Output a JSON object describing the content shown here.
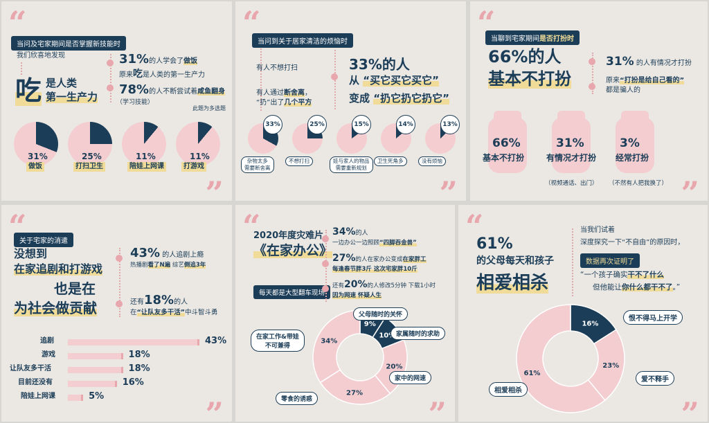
{
  "p1": {
    "pill": "当问及宅家期间是否掌握新技能时",
    "found": "我们欣喜地发现",
    "big": "吃",
    "big2": "是人类",
    "big3": "第一生产力",
    "s1pct": "31%",
    "s1a": "的人学会了",
    "s1b": "做饭",
    "s2a": "原来",
    "s2b": "吃",
    "s2c": "是人类的第一生产力",
    "s3pct": "78%",
    "s3a": "的人不断尝试着",
    "s3b": "咸鱼翻身",
    "s4": "（学习技能）",
    "note": "此题为多选题",
    "pies": [
      {
        "v": 31,
        "pct": "31%",
        "label": "做饭"
      },
      {
        "v": 25,
        "pct": "25%",
        "label": "打扫卫生"
      },
      {
        "v": 11,
        "pct": "11%",
        "label": "陪娃上网课"
      },
      {
        "v": 11,
        "pct": "11%",
        "label": "打游戏"
      }
    ]
  },
  "p2": {
    "pill": "当问到关于居家清洁的烦恼时",
    "l1": "有人不想打扫",
    "l2a": "有人通过",
    "l2b": "断舍离",
    "l2c": "，",
    "l3a": "“扔”出了",
    "l3b": "几个平方",
    "big1": "33%的人",
    "big2": "从",
    "big3": "“买它买它买它”",
    "big4": "变成",
    "big5": "“扔它扔它扔它”",
    "pies": [
      {
        "v": 33,
        "pct": "33%",
        "label": "杂物太多\n需要断舍离"
      },
      {
        "v": 25,
        "pct": "25%",
        "label": "不想打扫"
      },
      {
        "v": 15,
        "pct": "15%",
        "label": "娃与家人的物品\n需要重新规划"
      },
      {
        "v": 14,
        "pct": "14%",
        "label": "卫生死角多"
      },
      {
        "v": 13,
        "pct": "13%",
        "label": "没有烦恼"
      }
    ]
  },
  "p3": {
    "pill_a": "当聊到宅家期间",
    "pill_b": "是否打扮时",
    "big1": "66%的人",
    "big2": "基本不打扮",
    "s1pct": "31%",
    "s1": "的人有情况才打扮",
    "s2a": "原来",
    "s2b": "“打扮是给自己看的”",
    "s2c": "都是骗人的",
    "jars": [
      {
        "pct": "66%",
        "label": "基本不打扮",
        "sub": ""
      },
      {
        "pct": "31%",
        "label": "有情况才打扮",
        "sub": "（视频通话、出门）"
      },
      {
        "pct": "3%",
        "label": "经常打扮",
        "sub": "（不然有人把我换了）"
      }
    ]
  },
  "p4": {
    "pill": "关于宅家的消遣",
    "h1": "没想到",
    "h2": "在家追剧和打游戏",
    "h3": "也是在",
    "h4": "为社会做贡献",
    "s1pct": "43%",
    "s1": "的人追剧上瘾",
    "s2a": "热播剧",
    "s2b": "看了N遍",
    "s2c": "综艺",
    "s2d": "倒追3年",
    "s3a": "还有",
    "s3pct": "18%",
    "s3b": "的人",
    "s4a": "在",
    "s4b": "“让队友多干活”",
    "s4c": "中斗智斗勇",
    "bars": [
      {
        "label": "追剧",
        "pct": "43%",
        "v": 43
      },
      {
        "label": "游戏",
        "pct": "18%",
        "v": 18
      },
      {
        "label": "让队友多干活",
        "pct": "18%",
        "v": 18
      },
      {
        "label": "目前还没有",
        "pct": "16%",
        "v": 16
      },
      {
        "label": "陪娃上网课",
        "pct": "5%",
        "v": 5
      }
    ]
  },
  "p5": {
    "t1": "2020年度灾难片",
    "t2": "《在家办公》",
    "pill": "每天都是大型翻车现场",
    "a1pct": "34%",
    "a1": "的人",
    "a2a": "一边办公一边照顾",
    "a2b": "“四脚吞金兽”",
    "b1pct": "27%",
    "b1": "的人在家办公变成",
    "b1b": "在家胖工",
    "b2": "每逢春节胖3斤  这次宅家胖10斤",
    "c1a": "还有",
    "c1pct": "20%",
    "c1b": "的人修改5分钟 下载1小时",
    "c2": "因为网速  怀疑人生",
    "donut": [
      {
        "v": 9,
        "pct": "9%",
        "label": "父母随时的关怀"
      },
      {
        "v": 10,
        "pct": "10%",
        "label": "家属随时的求助"
      },
      {
        "v": 20,
        "pct": "20%",
        "label": "家中的网速"
      },
      {
        "v": 27,
        "pct": "27%",
        "label": "零食的诱惑"
      },
      {
        "v": 34,
        "pct": "34%",
        "label": "在家工作&带娃\n不可兼得"
      }
    ]
  },
  "p6": {
    "big1": "61%",
    "big2": "的父母每天和孩子",
    "big3": "相爱相杀",
    "r1": "当我们试着",
    "r2": "深度探究一下“不自由”的原因时，",
    "pill": "数据再次证明了",
    "r3a": "“一个孩子确实",
    "r3b": "干不了什么",
    "r4a": "但他能让",
    "r4b": "你什么都干不了",
    "r4c": "。”",
    "donut": [
      {
        "v": 16,
        "pct": "16%",
        "label": "恨不得马上开学"
      },
      {
        "v": 23,
        "pct": "23%",
        "label": "爱不释手"
      },
      {
        "v": 61,
        "pct": "61%",
        "label": "相爱相杀"
      }
    ]
  },
  "colors": {
    "navy": "#1c3d57",
    "pink": "#f3cdd0",
    "accent": "#e8a6ad",
    "yellow": "#f0dc98",
    "bg": "#ebe8e4"
  }
}
